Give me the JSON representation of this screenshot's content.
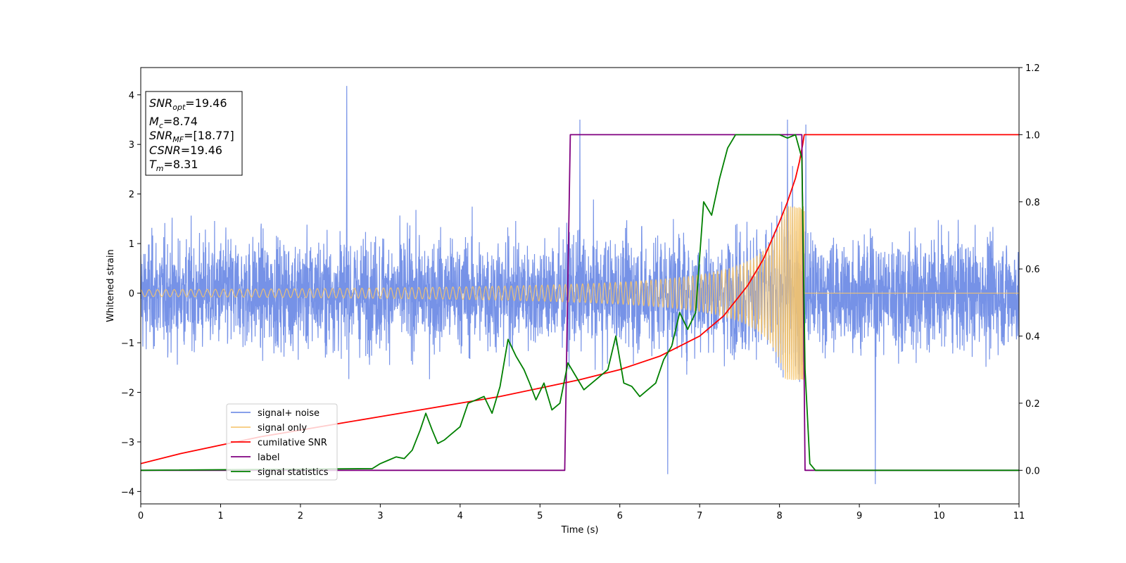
{
  "chart_data": {
    "type": "line",
    "title": "",
    "xlabel": "Time (s)",
    "ylabel": "Whitened strain",
    "xlim": [
      0,
      11
    ],
    "ylim_left": [
      -4.25,
      4.55
    ],
    "ylim_right": [
      -0.1,
      1.2
    ],
    "xticks": [
      0,
      1,
      2,
      3,
      4,
      5,
      6,
      7,
      8,
      9,
      10,
      11
    ],
    "yticks_left": [
      -4,
      -3,
      -2,
      -1,
      0,
      1,
      2,
      3,
      4
    ],
    "yticks_right": [
      0.0,
      0.2,
      0.4,
      0.6,
      0.8,
      1.0,
      1.2
    ],
    "yticks_right_labels": [
      "0.0",
      "0.2",
      "0.4",
      "0.6",
      "0.8",
      "1.0",
      "1.2"
    ],
    "grid": false,
    "legend_position": "lower-left",
    "info_box": {
      "lines": [
        {
          "base": "SNR",
          "sub": "opt",
          "value": "=19.46"
        },
        {
          "base": "M",
          "sub": "c",
          "value": "=8.74"
        },
        {
          "base": "SNR",
          "sub": "MF",
          "value": "=[18.77]"
        },
        {
          "base": "CSNR",
          "sub": "",
          "value": "=19.46"
        },
        {
          "base": "T",
          "sub": "m",
          "value": "=8.31"
        }
      ]
    },
    "series": [
      {
        "name": "signal+ noise",
        "axis": "left",
        "color": "#6f8ce6",
        "kind": "noise",
        "envelope_typical": 1.6,
        "peaks": [
          [
            2.58,
            4.18
          ],
          [
            8.1,
            3.5
          ],
          [
            8.33,
            3.4
          ],
          [
            6.6,
            -3.65
          ],
          [
            9.2,
            -3.85
          ],
          [
            5.5,
            3.5
          ]
        ]
      },
      {
        "name": "signal only",
        "axis": "left",
        "color": "#f5c46b",
        "kind": "chirp",
        "t_start": 0,
        "t_merge": 8.31,
        "amplitude_start": 0.07,
        "amplitude_peak": 1.75
      },
      {
        "name": "cumilative SNR",
        "axis": "right",
        "color": "#ff0000",
        "x": [
          0,
          0.5,
          1,
          1.5,
          2,
          2.5,
          3,
          3.5,
          4,
          4.5,
          5,
          5.5,
          6,
          6.5,
          7,
          7.3,
          7.6,
          7.8,
          8.0,
          8.1,
          8.2,
          8.25,
          8.29,
          8.31,
          8.4,
          9,
          10,
          11
        ],
        "y": [
          0.02,
          0.05,
          0.075,
          0.1,
          0.12,
          0.14,
          0.16,
          0.18,
          0.2,
          0.22,
          0.245,
          0.27,
          0.3,
          0.34,
          0.4,
          0.46,
          0.55,
          0.63,
          0.74,
          0.8,
          0.87,
          0.92,
          0.97,
          1.0,
          1.0,
          1.0,
          1.0,
          1.0
        ]
      },
      {
        "name": "label",
        "axis": "right",
        "color": "#800080",
        "x": [
          0,
          5.31,
          5.38,
          8.28,
          8.32,
          11
        ],
        "y": [
          0.0,
          0.0,
          1.0,
          1.0,
          0.0,
          0.0
        ]
      },
      {
        "name": "signal statistics",
        "axis": "right",
        "color": "#008000",
        "x": [
          0,
          2.9,
          3.0,
          3.1,
          3.2,
          3.3,
          3.4,
          3.5,
          3.57,
          3.65,
          3.72,
          3.8,
          3.9,
          4.0,
          4.1,
          4.2,
          4.3,
          4.4,
          4.5,
          4.6,
          4.7,
          4.8,
          4.87,
          4.95,
          5.05,
          5.15,
          5.25,
          5.35,
          5.45,
          5.55,
          5.65,
          5.75,
          5.85,
          5.95,
          6.05,
          6.15,
          6.25,
          6.35,
          6.45,
          6.55,
          6.65,
          6.75,
          6.85,
          6.95,
          7.05,
          7.15,
          7.25,
          7.35,
          7.45,
          7.6,
          7.8,
          8.0,
          8.1,
          8.2,
          8.28,
          8.32,
          8.38,
          8.45,
          8.6,
          11
        ],
        "y": [
          0.0,
          0.005,
          0.02,
          0.03,
          0.04,
          0.035,
          0.06,
          0.12,
          0.17,
          0.12,
          0.08,
          0.09,
          0.11,
          0.13,
          0.2,
          0.21,
          0.22,
          0.17,
          0.25,
          0.39,
          0.34,
          0.3,
          0.26,
          0.21,
          0.26,
          0.18,
          0.2,
          0.32,
          0.28,
          0.24,
          0.26,
          0.28,
          0.3,
          0.4,
          0.26,
          0.25,
          0.22,
          0.24,
          0.26,
          0.33,
          0.37,
          0.47,
          0.42,
          0.47,
          0.8,
          0.76,
          0.87,
          0.96,
          1.0,
          1.0,
          1.0,
          1.0,
          0.99,
          1.0,
          0.93,
          0.3,
          0.02,
          0.0,
          0.0,
          0.0
        ]
      }
    ]
  }
}
